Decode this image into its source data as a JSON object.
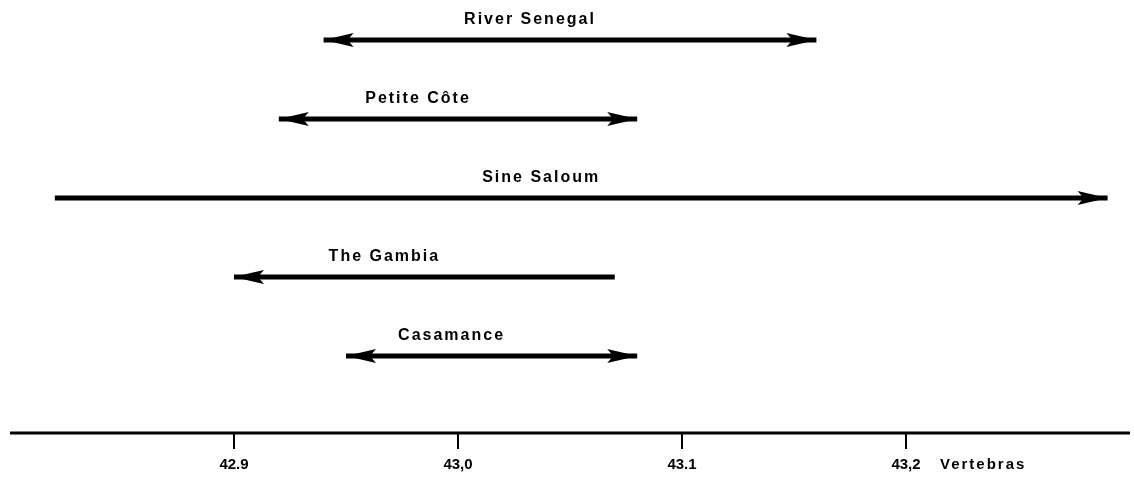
{
  "chart_data": {
    "type": "bar",
    "orientation": "horizontal",
    "xlabel": "Vertebras",
    "categories": [
      "River Senegal",
      "Petite Côte",
      "Sine Saloum",
      "The Gambia",
      "Casamance"
    ],
    "base": [
      42.94,
      42.92,
      42.82,
      42.9,
      42.95
    ],
    "values": [
      0.22,
      0.16,
      0.47,
      0.17,
      0.13
    ],
    "color": "#000000",
    "xlim": [
      42.8,
      43.3
    ],
    "xticks": [
      42.9,
      {
        "value": 43,
        "label": "43,0"
      },
      43.1,
      {
        "value": 43.2,
        "label": "43,2"
      }
    ],
    "grid": false
  }
}
